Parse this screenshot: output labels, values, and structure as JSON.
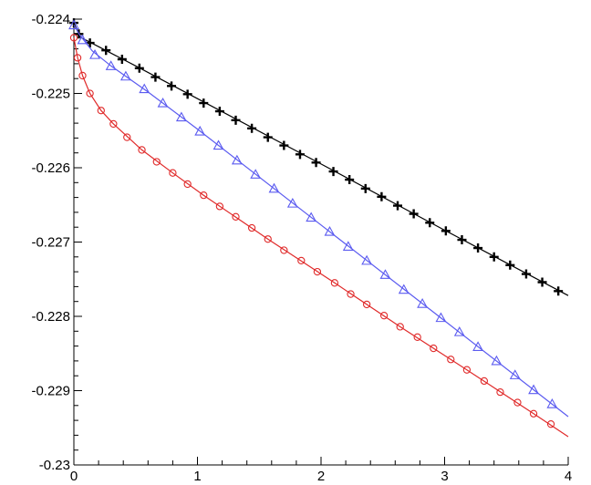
{
  "chart_data": {
    "type": "line",
    "title": "",
    "xlabel": "",
    "ylabel": "",
    "xlim": [
      0,
      4
    ],
    "ylim": [
      -0.23,
      -0.224
    ],
    "grid": false,
    "legend": "none",
    "x_ticks": [
      "0",
      "1",
      "2",
      "3",
      "4"
    ],
    "y_ticks": [
      "-0.224",
      "-0.225",
      "-0.226",
      "-0.227",
      "-0.228",
      "-0.229",
      "-0.23"
    ],
    "series": [
      {
        "color": "#000000",
        "marker": "plus",
        "x": [
          0.0,
          0.04,
          0.13,
          0.26,
          0.39,
          0.53,
          0.66,
          0.79,
          0.92,
          1.05,
          1.18,
          1.31,
          1.44,
          1.57,
          1.7,
          1.83,
          1.96,
          2.1,
          2.23,
          2.36,
          2.49,
          2.62,
          2.75,
          2.88,
          3.01,
          3.14,
          3.27,
          3.4,
          3.53,
          3.66,
          3.79,
          3.92
        ],
        "y": [
          -0.22405,
          -0.2242,
          -0.22432,
          -0.22442,
          -0.22454,
          -0.22466,
          -0.22478,
          -0.2249,
          -0.22501,
          -0.22513,
          -0.22524,
          -0.22536,
          -0.22547,
          -0.22559,
          -0.2257,
          -0.22582,
          -0.22593,
          -0.22605,
          -0.22616,
          -0.22628,
          -0.22639,
          -0.22651,
          -0.22662,
          -0.22674,
          -0.22685,
          -0.22697,
          -0.22708,
          -0.2272,
          -0.22731,
          -0.22743,
          -0.22754,
          -0.22766
        ],
        "line_x": [
          0.0,
          0.05,
          0.2,
          0.5,
          1.0,
          2.0,
          3.0,
          4.0
        ],
        "line_y": [
          -0.22405,
          -0.22424,
          -0.22437,
          -0.22463,
          -0.22507,
          -0.22595,
          -0.22684,
          -0.22772
        ]
      },
      {
        "color": "#5b5bf0",
        "marker": "triangle",
        "x": [
          0.0,
          0.07,
          0.17,
          0.3,
          0.42,
          0.57,
          0.72,
          0.87,
          1.02,
          1.17,
          1.32,
          1.47,
          1.62,
          1.77,
          1.92,
          2.07,
          2.22,
          2.37,
          2.52,
          2.67,
          2.82,
          2.97,
          3.12,
          3.27,
          3.42,
          3.57,
          3.72,
          3.87
        ],
        "y": [
          -0.22408,
          -0.22428,
          -0.22448,
          -0.22463,
          -0.22477,
          -0.22494,
          -0.22513,
          -0.22532,
          -0.22551,
          -0.2257,
          -0.2259,
          -0.22609,
          -0.22628,
          -0.22648,
          -0.22667,
          -0.22686,
          -0.22706,
          -0.22725,
          -0.22744,
          -0.22764,
          -0.22783,
          -0.22802,
          -0.22821,
          -0.22841,
          -0.2286,
          -0.22879,
          -0.22899,
          -0.22918
        ],
        "line_x": [
          0.0,
          0.05,
          0.15,
          0.3,
          0.6,
          1.0,
          2.0,
          3.0,
          4.0
        ],
        "line_y": [
          -0.22408,
          -0.22422,
          -0.22443,
          -0.22463,
          -0.22498,
          -0.22548,
          -0.22677,
          -0.22806,
          -0.22935
        ]
      },
      {
        "color": "#e02a2a",
        "marker": "circle",
        "x": [
          0.0,
          0.03,
          0.07,
          0.13,
          0.22,
          0.32,
          0.43,
          0.55,
          0.67,
          0.8,
          0.92,
          1.05,
          1.18,
          1.31,
          1.44,
          1.57,
          1.7,
          1.84,
          1.97,
          2.11,
          2.24,
          2.37,
          2.51,
          2.64,
          2.78,
          2.91,
          3.05,
          3.18,
          3.32,
          3.45,
          3.59,
          3.72,
          3.86
        ],
        "y": [
          -0.22425,
          -0.22452,
          -0.22476,
          -0.225,
          -0.22523,
          -0.22541,
          -0.22559,
          -0.22576,
          -0.22592,
          -0.22607,
          -0.22622,
          -0.22637,
          -0.22652,
          -0.22666,
          -0.22681,
          -0.22696,
          -0.22711,
          -0.22725,
          -0.2274,
          -0.22755,
          -0.2277,
          -0.22784,
          -0.22799,
          -0.22814,
          -0.22828,
          -0.22843,
          -0.22858,
          -0.22872,
          -0.22887,
          -0.22902,
          -0.22916,
          -0.22931,
          -0.22945
        ],
        "line_x": [
          0.0,
          0.03,
          0.07,
          0.13,
          0.22,
          0.32,
          0.55,
          0.8,
          1.05,
          1.57,
          2.11,
          2.64,
          3.18,
          3.72,
          4.0
        ],
        "line_y": [
          -0.22425,
          -0.22452,
          -0.22476,
          -0.225,
          -0.22523,
          -0.22541,
          -0.22576,
          -0.22607,
          -0.22637,
          -0.22696,
          -0.22755,
          -0.22814,
          -0.22872,
          -0.22931,
          -0.22962
        ]
      }
    ]
  }
}
